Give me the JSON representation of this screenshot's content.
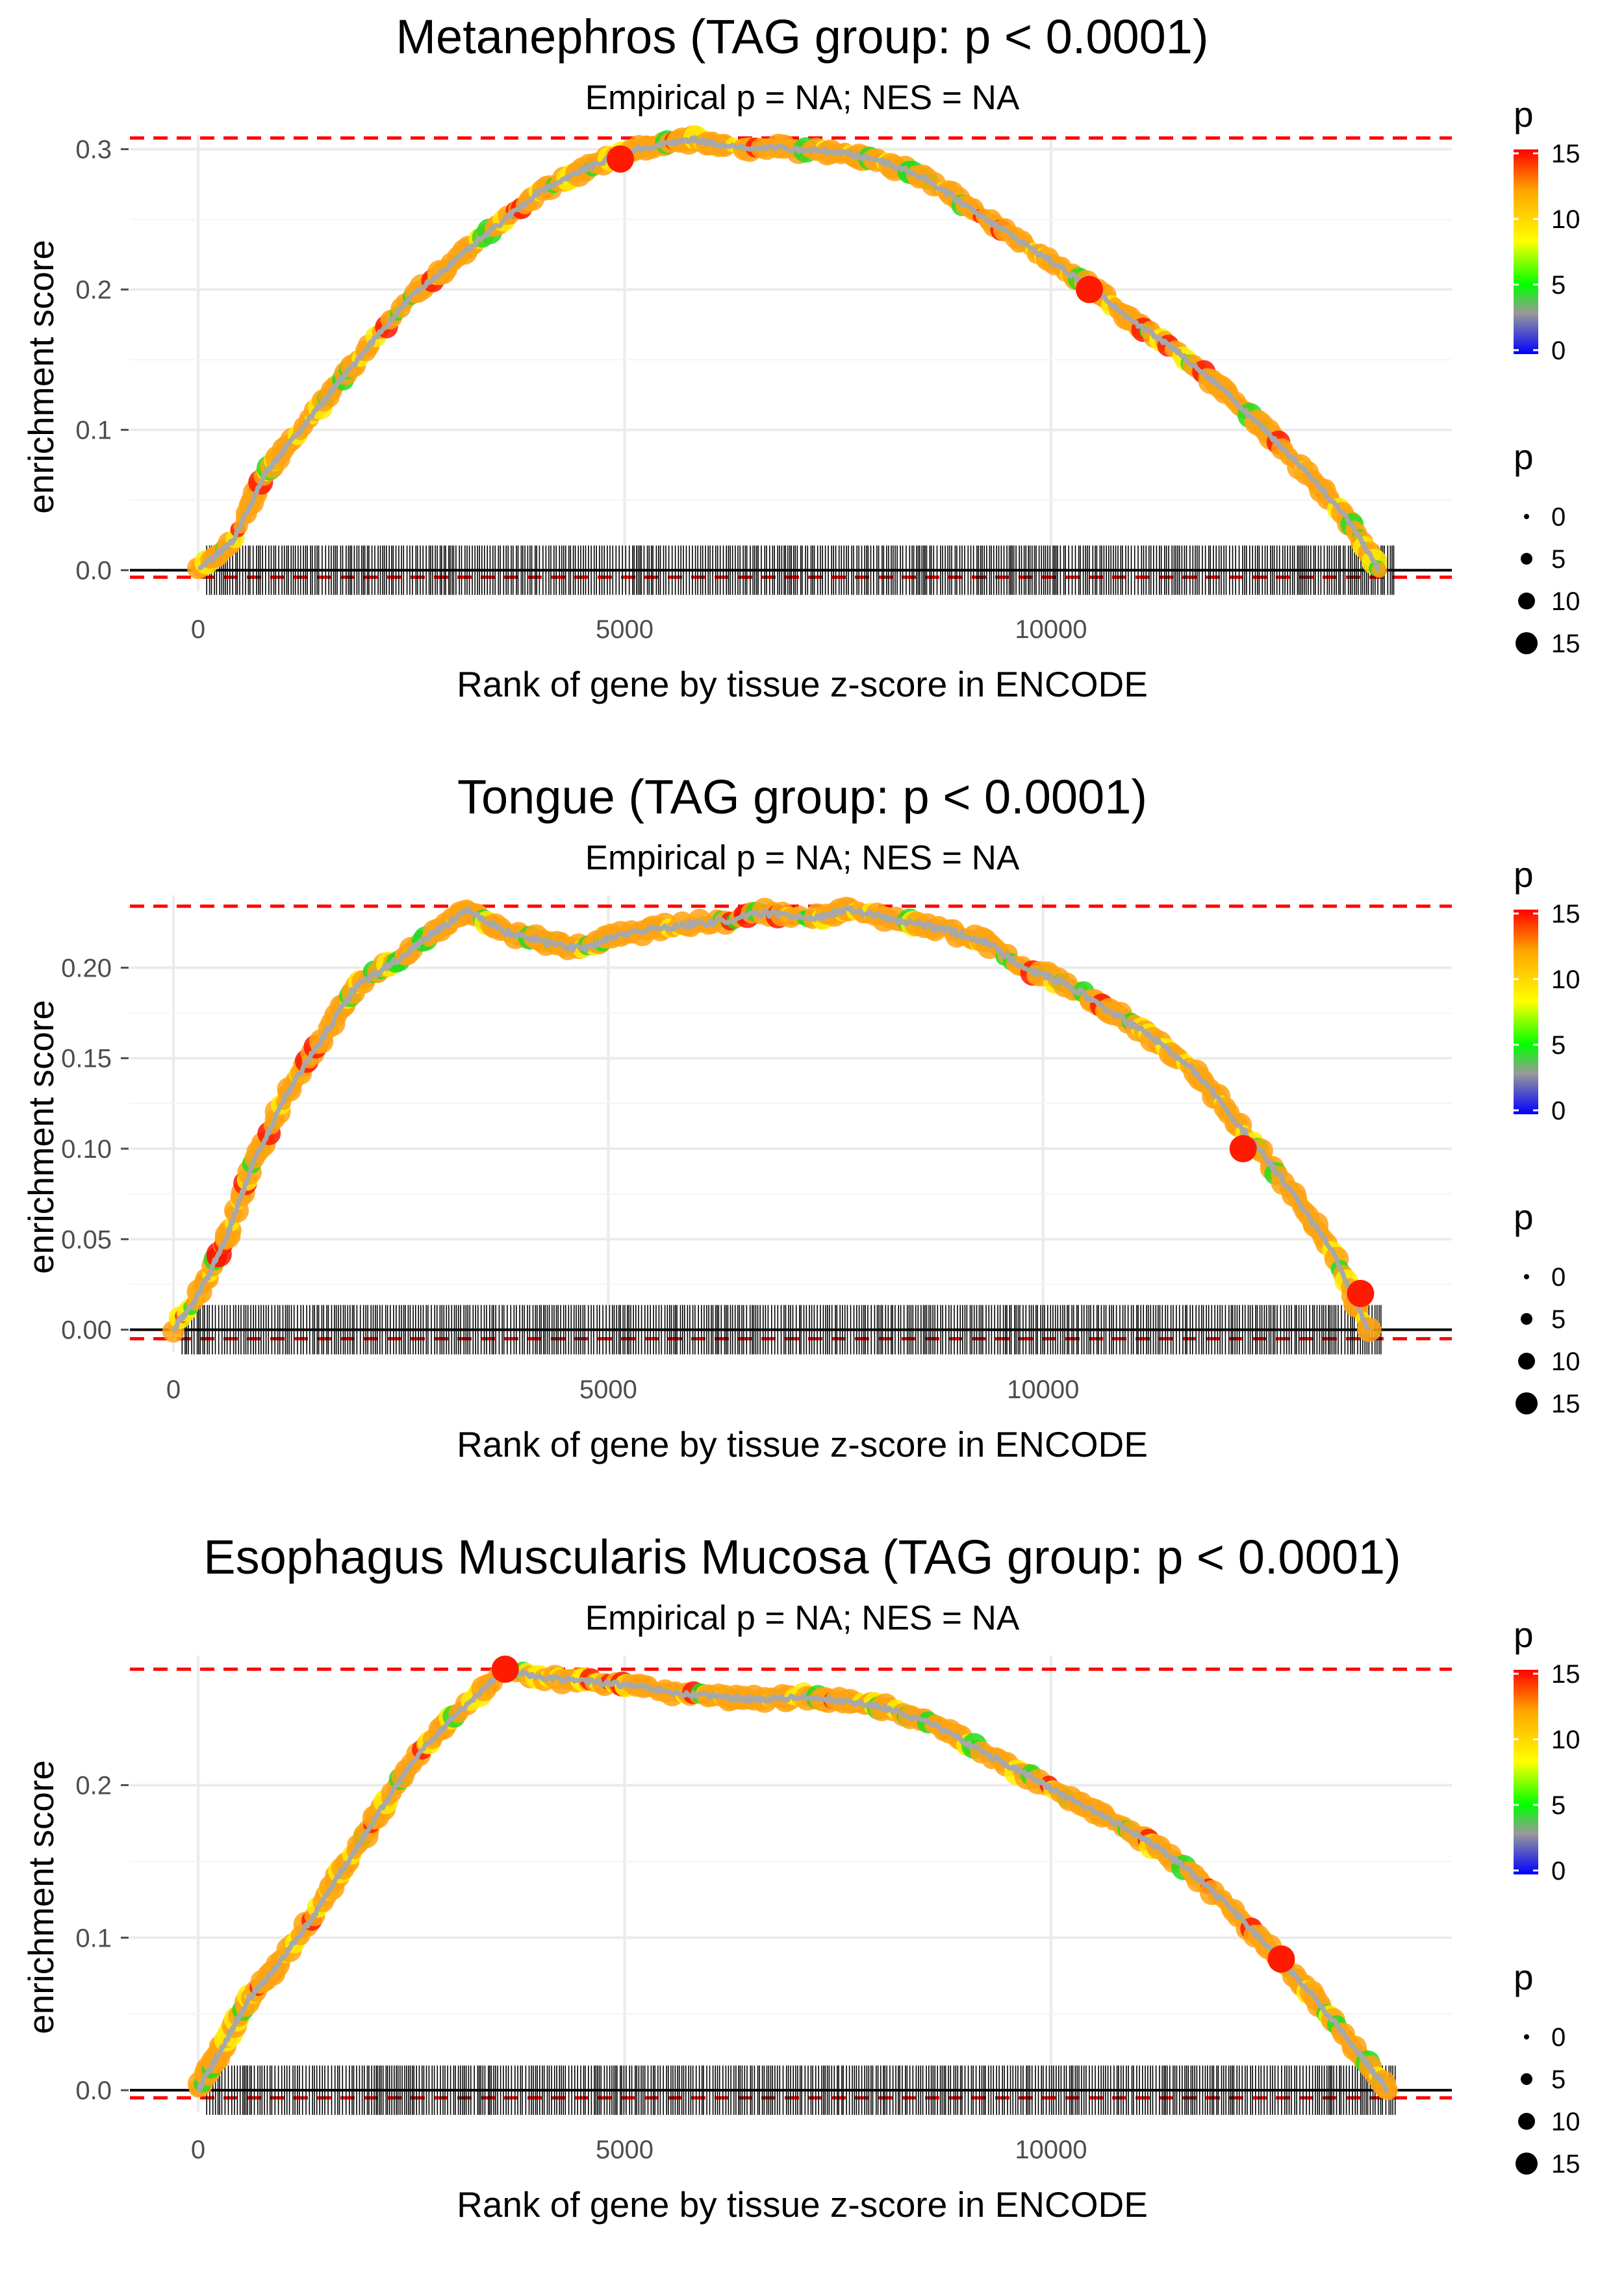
{
  "figure": {
    "legend_colour_title": "p",
    "legend_size_title": "p"
  },
  "chart_data": [
    {
      "type": "line",
      "title": "Metanephros (TAG group: p < 0.0001)",
      "subtitle": "Empirical p = NA; NES = NA",
      "xlabel": "Rank of gene by tissue z-score in ENCODE",
      "ylabel": "enrichment score",
      "xlim": [
        -800,
        14700
      ],
      "ylim": [
        -0.015,
        0.31
      ],
      "xticks": [
        0,
        5000,
        10000
      ],
      "xtick_labels": [
        "0",
        "5000",
        "10000"
      ],
      "yticks": [
        0.0,
        0.1,
        0.2,
        0.3
      ],
      "ytick_labels": [
        "0.0",
        "0.1",
        "0.2",
        "0.3"
      ],
      "max_es": 0.308,
      "min_es": -0.005,
      "curve_x": [
        0,
        400,
        800,
        1200,
        1600,
        2000,
        2500,
        3000,
        3500,
        4000,
        4500,
        5000,
        5500,
        5800,
        6200,
        7000,
        7500,
        8000,
        8500,
        9000,
        9500,
        10000,
        10500,
        11000,
        11500,
        12000,
        12500,
        13000,
        13500,
        13850
      ],
      "curve_es": [
        0.0,
        0.02,
        0.07,
        0.1,
        0.13,
        0.16,
        0.195,
        0.22,
        0.245,
        0.27,
        0.285,
        0.298,
        0.304,
        0.307,
        0.302,
        0.3,
        0.298,
        0.292,
        0.28,
        0.26,
        0.24,
        0.22,
        0.2,
        0.176,
        0.155,
        0.13,
        0.1,
        0.07,
        0.035,
        0.0
      ],
      "hit_range": [
        100,
        14050
      ],
      "highlights": [
        {
          "x": 4950,
          "es": 0.293
        },
        {
          "x": 10450,
          "es": 0.2
        }
      ],
      "legend_colour_ticks": [
        "0",
        "5",
        "10",
        "15"
      ],
      "legend_size_labels": [
        "0",
        "5",
        "10",
        "15"
      ]
    },
    {
      "type": "line",
      "title": "Tongue (TAG group: p < 0.0001)",
      "subtitle": "Empirical p = NA; NES = NA",
      "xlabel": "Rank of gene by tissue z-score in ENCODE",
      "ylabel": "enrichment score",
      "xlim": [
        -500,
        14700
      ],
      "ylim": [
        -0.012,
        0.24
      ],
      "xticks": [
        0,
        5000,
        10000
      ],
      "xtick_labels": [
        "0",
        "5000",
        "10000"
      ],
      "yticks": [
        0.0,
        0.05,
        0.1,
        0.15,
        0.2
      ],
      "ytick_labels": [
        "0.00",
        "0.05",
        "0.10",
        "0.15",
        "0.20"
      ],
      "max_es": 0.234,
      "min_es": -0.005,
      "curve_x": [
        0,
        300,
        600,
        900,
        1300,
        1700,
        2100,
        2600,
        3000,
        3400,
        3800,
        4200,
        4700,
        5100,
        5600,
        6200,
        6800,
        7400,
        7800,
        8300,
        8800,
        9300,
        9800,
        10300,
        10800,
        11300,
        11800,
        12300,
        12800,
        13300,
        13750
      ],
      "curve_es": [
        0.0,
        0.02,
        0.05,
        0.09,
        0.13,
        0.16,
        0.19,
        0.205,
        0.22,
        0.232,
        0.22,
        0.215,
        0.21,
        0.218,
        0.222,
        0.225,
        0.23,
        0.228,
        0.232,
        0.226,
        0.222,
        0.215,
        0.2,
        0.19,
        0.175,
        0.16,
        0.14,
        0.11,
        0.08,
        0.045,
        0.0
      ],
      "hit_range": [
        100,
        13900
      ],
      "highlights": [
        {
          "x": 12300,
          "es": 0.1
        },
        {
          "x": 13650,
          "es": 0.02
        }
      ],
      "legend_colour_ticks": [
        "0",
        "5",
        "10",
        "15"
      ],
      "legend_size_labels": [
        "0",
        "5",
        "10",
        "15"
      ]
    },
    {
      "type": "line",
      "title": "Esophagus Muscularis Mucosa (TAG group: p < 0.0001)",
      "subtitle": "Empirical p = NA; NES = NA",
      "xlabel": "Rank of gene by tissue z-score in ENCODE",
      "ylabel": "enrichment score",
      "xlim": [
        -800,
        14700
      ],
      "ylim": [
        -0.014,
        0.285
      ],
      "xticks": [
        0,
        5000,
        10000
      ],
      "xtick_labels": [
        "0",
        "5000",
        "10000"
      ],
      "yticks": [
        0.0,
        0.1,
        0.2
      ],
      "ytick_labels": [
        "0.0",
        "0.1",
        "0.2"
      ],
      "max_es": 0.276,
      "min_es": -0.005,
      "curve_x": [
        0,
        300,
        600,
        900,
        1300,
        1700,
        2100,
        2500,
        3000,
        3600,
        4100,
        4600,
        5100,
        5600,
        6100,
        6600,
        7100,
        7600,
        8100,
        8600,
        9100,
        9600,
        10100,
        10600,
        11100,
        11600,
        12100,
        12600,
        13100,
        13600,
        13950
      ],
      "curve_es": [
        0.0,
        0.03,
        0.06,
        0.08,
        0.11,
        0.145,
        0.18,
        0.215,
        0.245,
        0.276,
        0.27,
        0.268,
        0.265,
        0.26,
        0.258,
        0.256,
        0.258,
        0.255,
        0.25,
        0.24,
        0.225,
        0.21,
        0.195,
        0.18,
        0.165,
        0.145,
        0.12,
        0.09,
        0.06,
        0.025,
        0.0
      ],
      "hit_range": [
        100,
        14050
      ],
      "highlights": [
        {
          "x": 3600,
          "es": 0.276
        },
        {
          "x": 12700,
          "es": 0.086
        }
      ],
      "legend_colour_ticks": [
        "0",
        "5",
        "10",
        "15"
      ],
      "legend_size_labels": [
        "0",
        "5",
        "10",
        "15"
      ]
    }
  ]
}
